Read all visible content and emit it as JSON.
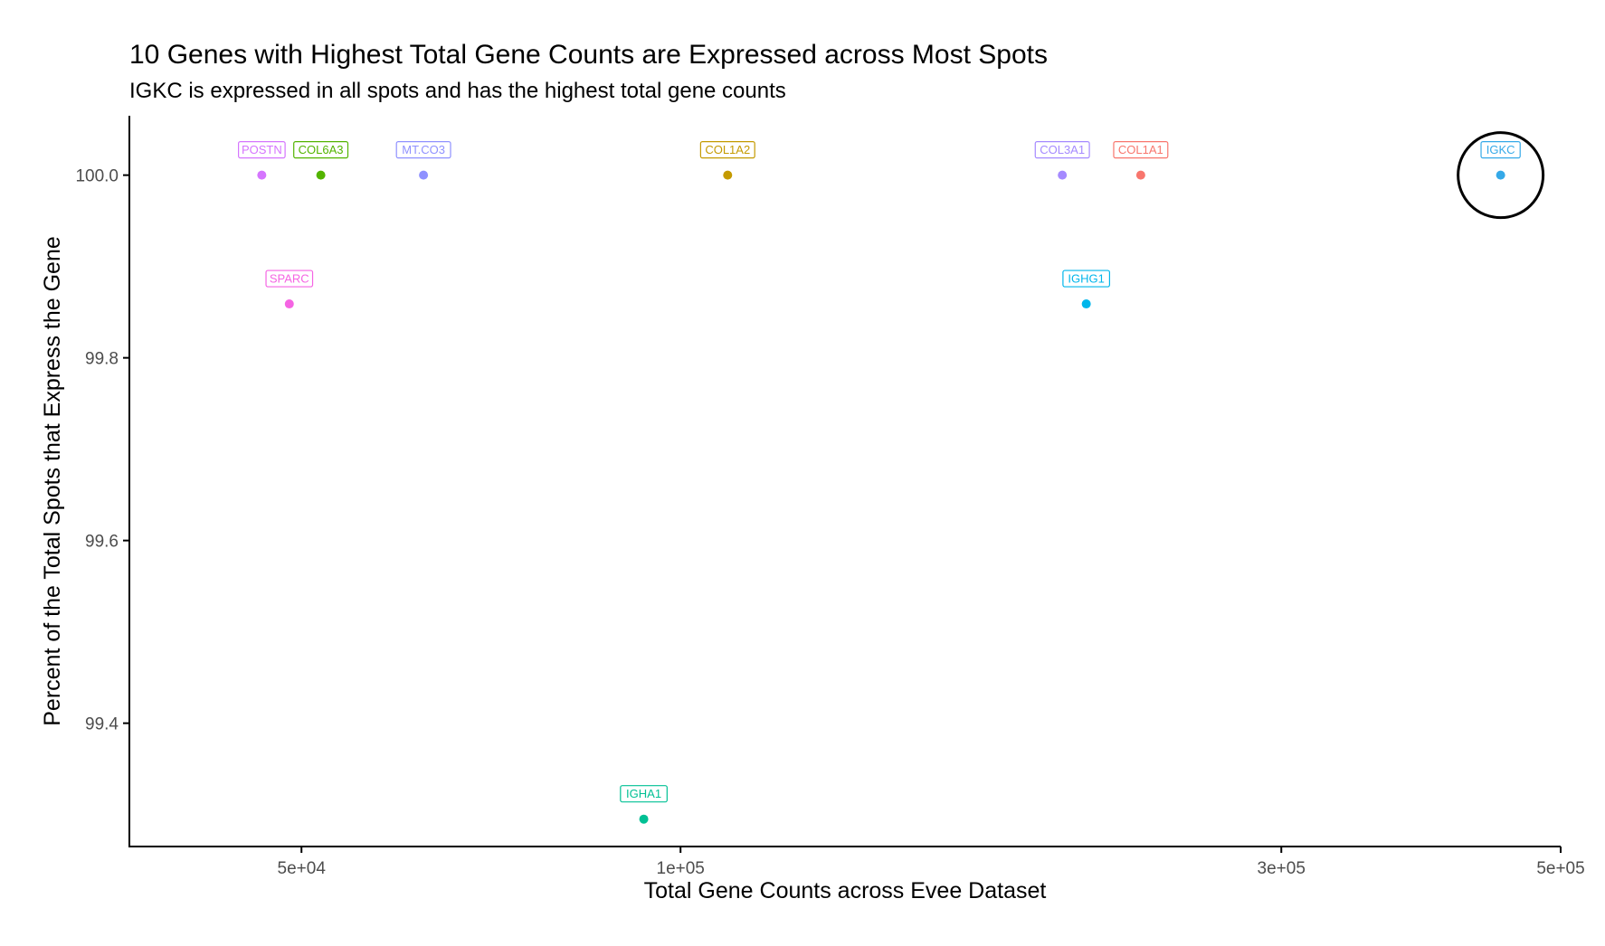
{
  "chart_data": {
    "type": "scatter",
    "title": "10 Genes with Highest Total Gene Counts are Expressed across Most Spots",
    "subtitle": "IGKC is expressed in all spots and has the highest total gene counts",
    "xlabel": "Total Gene Counts across Evee Dataset",
    "ylabel": "Percent of the Total Spots that Express the Gene",
    "x_scale": "log",
    "xlim": [
      36500,
      500000
    ],
    "ylim": [
      99.265,
      100.065
    ],
    "x_ticks": [
      {
        "value": 50000,
        "label": "5e+04"
      },
      {
        "value": 100000,
        "label": "1e+05"
      },
      {
        "value": 300000,
        "label": "3e+05"
      },
      {
        "value": 500000,
        "label": "5e+05"
      }
    ],
    "y_ticks": [
      {
        "value": 99.4,
        "label": "99.4"
      },
      {
        "value": 99.6,
        "label": "99.6"
      },
      {
        "value": 99.8,
        "label": "99.8"
      },
      {
        "value": 100.0,
        "label": "100.0"
      }
    ],
    "grid": false,
    "legend": "none",
    "highlight": {
      "gene": "IGKC",
      "shape": "circle"
    },
    "points": [
      {
        "gene": "POSTN",
        "x": 46500,
        "y": 100.0,
        "color": "#D575FE"
      },
      {
        "gene": "COL6A3",
        "x": 51800,
        "y": 100.0,
        "color": "#53B400"
      },
      {
        "gene": "MT.CO3",
        "x": 62500,
        "y": 100.0,
        "color": "#8F91FF"
      },
      {
        "gene": "SPARC",
        "x": 48900,
        "y": 99.859,
        "color": "#F564E3"
      },
      {
        "gene": "COL1A2",
        "x": 109000,
        "y": 100.0,
        "color": "#C49A00"
      },
      {
        "gene": "COL3A1",
        "x": 201000,
        "y": 100.0,
        "color": "#A58AFF"
      },
      {
        "gene": "COL1A1",
        "x": 232000,
        "y": 100.0,
        "color": "#F8766D"
      },
      {
        "gene": "IGHG1",
        "x": 210000,
        "y": 99.859,
        "color": "#00B6EB"
      },
      {
        "gene": "IGHA1",
        "x": 93500,
        "y": 99.295,
        "color": "#00C094"
      },
      {
        "gene": "IGKC",
        "x": 448000,
        "y": 100.0,
        "color": "#35A9E8"
      }
    ]
  }
}
